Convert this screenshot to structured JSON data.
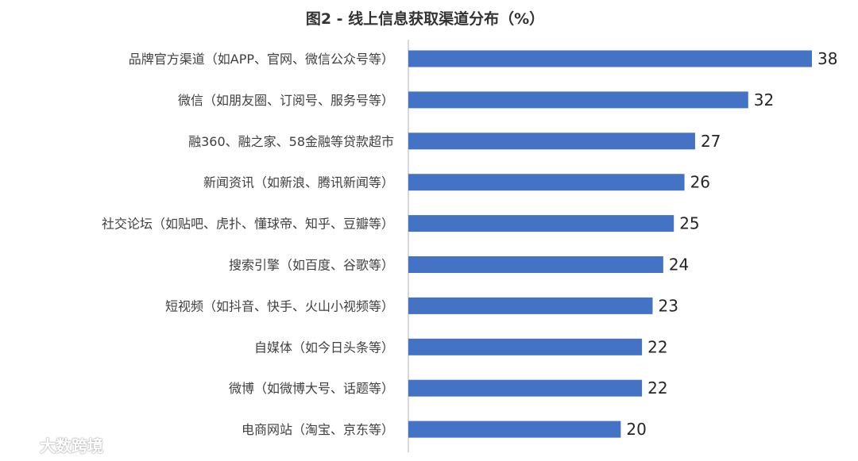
{
  "chart_data": {
    "type": "bar",
    "orientation": "horizontal",
    "title": "图2 - 线上信息获取渠道分布（%）",
    "categories": [
      "品牌官方渠道（如APP、官网、微信公众号等）",
      "微信（如朋友圈、订阅号、服务号等）",
      "融360、融之家、58金融等贷款超市",
      "新闻资讯（如新浪、腾讯新闻等）",
      "社交论坛（如贴吧、虎扑、懂球帝、知乎、豆瓣等）",
      "搜索引擎（如百度、谷歌等）",
      "短视频（如抖音、快手、火山小视频等）",
      "自媒体（如今日头条等）",
      "微博（如微博大号、话题等）",
      "电商网站（淘宝、京东等）"
    ],
    "values": [
      38,
      32,
      27,
      26,
      25,
      24,
      23,
      22,
      22,
      20
    ],
    "xlim": [
      0,
      38
    ],
    "grid": false,
    "data_labels": true,
    "bar_color": "#4472C4",
    "axis_color": "#BFBFBF"
  },
  "watermark": {
    "text": "大数跨境",
    "icon": "logo-icon"
  }
}
